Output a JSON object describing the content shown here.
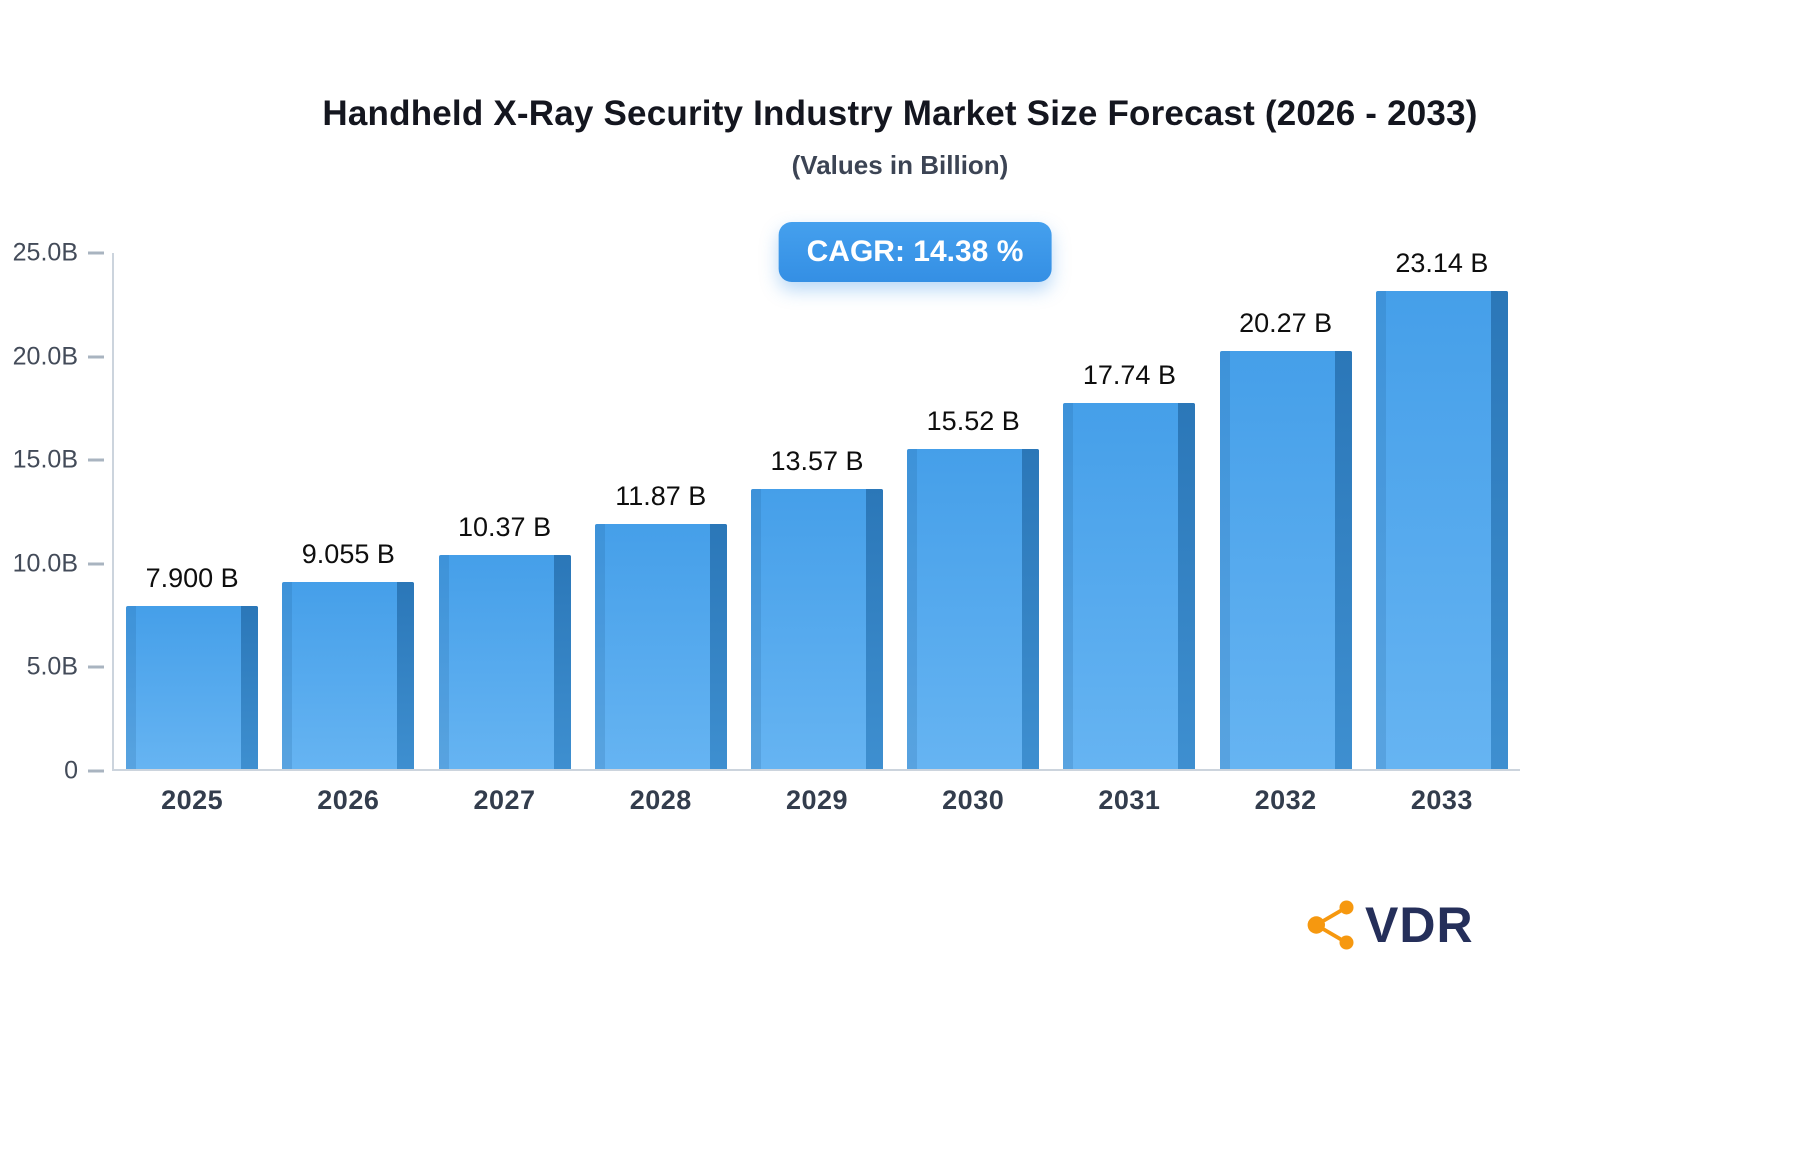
{
  "header": {
    "title": "Handheld X-Ray Security Industry Market Size Forecast (2026 - 2033)",
    "subtitle": "(Values in Billion)"
  },
  "badge": {
    "label": "CAGR: 14.38 %"
  },
  "logo": {
    "text": "VDR",
    "icon": "network-nodes-icon",
    "icon_color": "#F6980F",
    "text_color": "#252F5A"
  },
  "chart_data": {
    "type": "bar",
    "title": "Handheld X-Ray Security Industry Market Size Forecast (2026 - 2033)",
    "subtitle": "(Values in Billion)",
    "categories": [
      "2025",
      "2026",
      "2027",
      "2028",
      "2029",
      "2030",
      "2031",
      "2032",
      "2033"
    ],
    "values": [
      7.9,
      9.055,
      10.37,
      11.87,
      13.57,
      15.52,
      17.74,
      20.27,
      23.14
    ],
    "value_labels": [
      "7.900 B",
      "9.055 B",
      "10.37 B",
      "11.87 B",
      "13.57 B",
      "15.52 B",
      "17.74 B",
      "20.27 B",
      "23.14 B"
    ],
    "xlabel": "",
    "ylabel": "",
    "ylim": [
      0,
      25
    ],
    "y_ticks": [
      "25.0B",
      "20.0B",
      "15.0B",
      "10.0B",
      "5.0B",
      "0"
    ],
    "grid": false,
    "legend": false,
    "cagr": "14.38 %",
    "bar_color_top": "#459FE9",
    "bar_color_bottom": "#66B4F2",
    "bar_side_color": "#2B77B8"
  }
}
